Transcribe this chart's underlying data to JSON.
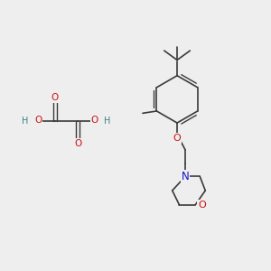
{
  "background_color": "#eeeeee",
  "bond_color": "#3a3a3a",
  "oxygen_color": "#cc1111",
  "nitrogen_color": "#1111cc",
  "hydrogen_color": "#3d8080",
  "figsize": [
    3.0,
    3.0
  ],
  "dpi": 100,
  "lw": 1.2,
  "lw_inner": 1.0,
  "ts": 7.0,
  "oa_c1x": 2.0,
  "oa_c1y": 5.55,
  "oa_c2x": 2.85,
  "oa_c2y": 5.55,
  "bcx": 6.55,
  "bcy": 6.35,
  "rb": 0.88,
  "morph_dx": [
    -0.48,
    -0.22,
    0.38,
    0.75,
    0.55
  ],
  "morph_dy": [
    -0.52,
    -1.05,
    -1.05,
    -0.52,
    0.0
  ]
}
